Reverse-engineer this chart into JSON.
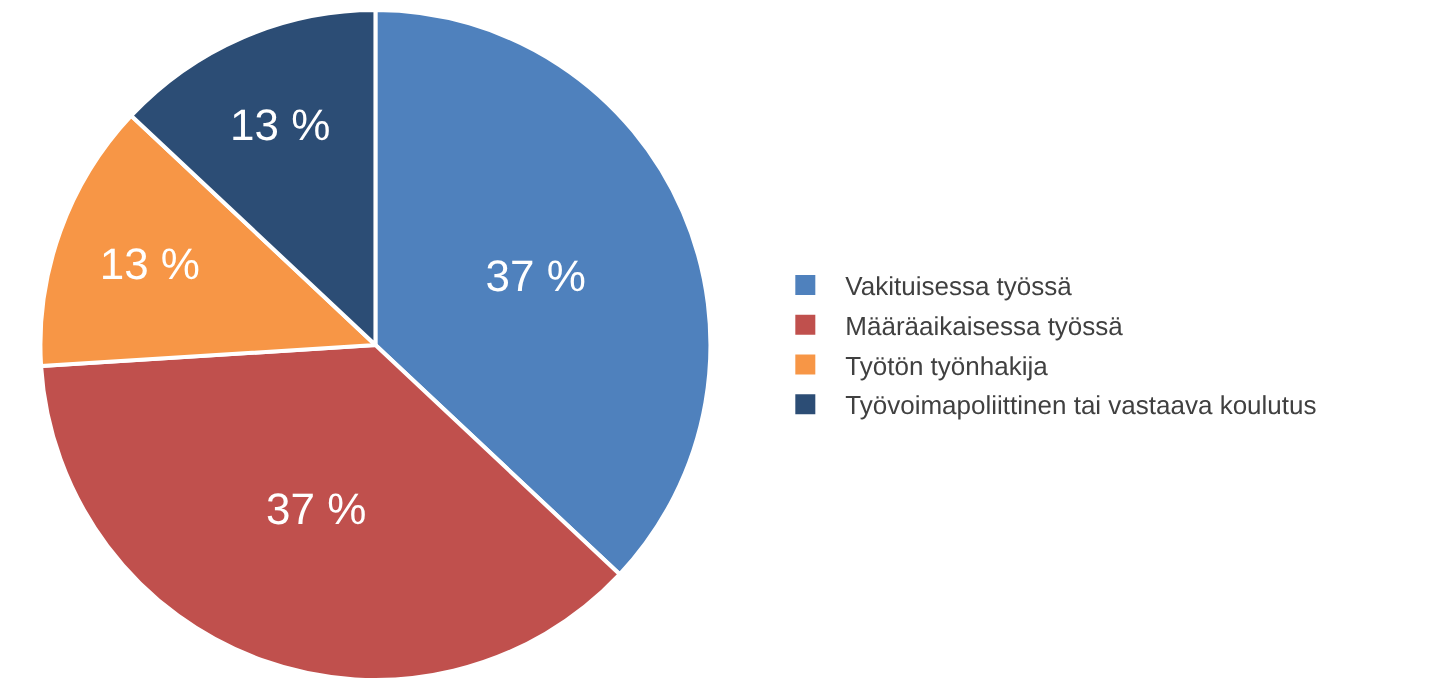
{
  "chart_data": {
    "type": "pie",
    "categories": [
      "Vakituisessa työssä",
      "Määräaikaisessa työssä",
      "Työtön työnhakija",
      "Työvoimapoliittinen tai vastaava koulutus"
    ],
    "values": [
      37,
      37,
      13,
      13
    ],
    "colors": [
      "#4f81bd",
      "#c0504d",
      "#f79646",
      "#2c4d75"
    ],
    "value_labels": [
      "37 %",
      "37 %",
      "13 %",
      "13 %"
    ],
    "legend": "right"
  }
}
